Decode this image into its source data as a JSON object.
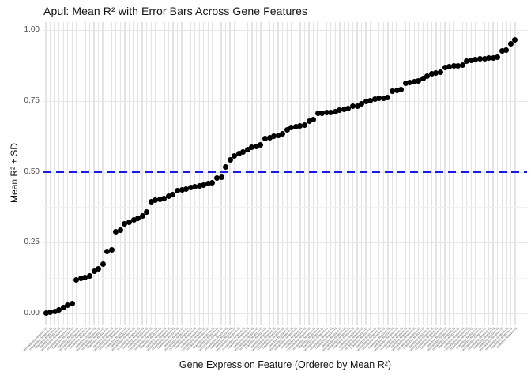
{
  "title": "Apul: Mean R² with Error Bars Across Gene Features",
  "y_axis": {
    "title": "Mean R² ± SD",
    "ticks": [
      {
        "label": "0.00",
        "value": 0.0
      },
      {
        "label": "0.25",
        "value": 0.25
      },
      {
        "label": "0.50",
        "value": 0.5
      },
      {
        "label": "0.75",
        "value": 0.75
      },
      {
        "label": "1.00",
        "value": 1.0
      }
    ]
  },
  "x_axis": {
    "title": "Gene Expression Feature (Ordered by Mean R²)",
    "tick_labels_legible": false,
    "tick_label_placeholder": "unreadable-feature-id"
  },
  "colors": {
    "point": "#000000",
    "reference_line": "#1a1ae6",
    "grid_major": "#e6e6e6",
    "grid_minor": "#f1f1f1",
    "tick_text": "#4d4d4d",
    "background": "#ffffff"
  },
  "chart_data": {
    "type": "scatter",
    "title": "Apul: Mean R² with Error Bars Across Gene Features",
    "xlabel": "Gene Expression Feature (Ordered by Mean R²)",
    "ylabel": "Mean R² ± SD",
    "ylim": [
      0,
      1
    ],
    "yticks": [
      0,
      0.25,
      0.5,
      0.75,
      1.0
    ],
    "yticks_minor": [
      0.125,
      0.375,
      0.625,
      0.875
    ],
    "grid": true,
    "legend": false,
    "reference_line": {
      "y": 0.5,
      "style": "dashed",
      "color": "#1a1ae6"
    },
    "error_bars_visible": false,
    "x": "categorical rank 1..108 (feature name labels too small to read)",
    "n_points": 108,
    "values": [
      0.002,
      0.005,
      0.008,
      0.013,
      0.02,
      0.028,
      0.034,
      0.118,
      0.124,
      0.128,
      0.131,
      0.15,
      0.156,
      0.173,
      0.219,
      0.225,
      0.289,
      0.294,
      0.317,
      0.323,
      0.329,
      0.335,
      0.344,
      0.358,
      0.395,
      0.4,
      0.403,
      0.406,
      0.414,
      0.418,
      0.432,
      0.437,
      0.44,
      0.443,
      0.447,
      0.451,
      0.454,
      0.458,
      0.462,
      0.479,
      0.481,
      0.516,
      0.543,
      0.557,
      0.563,
      0.571,
      0.577,
      0.585,
      0.59,
      0.596,
      0.618,
      0.621,
      0.625,
      0.628,
      0.633,
      0.649,
      0.655,
      0.66,
      0.661,
      0.664,
      0.677,
      0.683,
      0.705,
      0.706,
      0.708,
      0.71,
      0.711,
      0.716,
      0.719,
      0.724,
      0.73,
      0.732,
      0.739,
      0.749,
      0.752,
      0.756,
      0.758,
      0.76,
      0.762,
      0.784,
      0.786,
      0.789,
      0.812,
      0.815,
      0.818,
      0.821,
      0.83,
      0.836,
      0.845,
      0.849,
      0.85,
      0.867,
      0.87,
      0.872,
      0.873,
      0.877,
      0.89,
      0.893,
      0.895,
      0.897,
      0.898,
      0.9,
      0.901,
      0.903,
      0.927,
      0.93,
      0.951,
      0.965
    ]
  }
}
